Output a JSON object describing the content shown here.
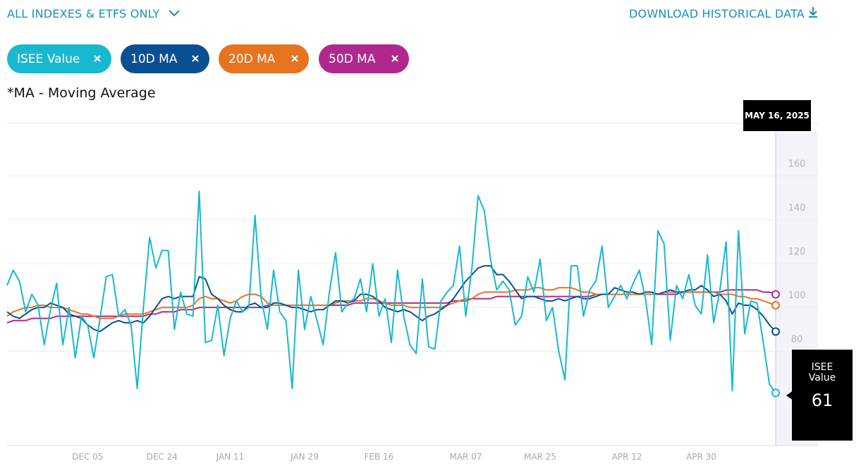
{
  "header": {
    "filter": "ALL INDEXES & ETFS ONLY",
    "download": "DOWNLOAD HISTORICAL DATA",
    "note": "*MA - Moving Average"
  },
  "chart_data": {
    "type": "line",
    "tooltip_date": "MAY 16, 2025",
    "categories": [
      null,
      null,
      null,
      null,
      null,
      null,
      null,
      null,
      null,
      null,
      null,
      null,
      null,
      "DEC 05",
      null,
      null,
      null,
      null,
      null,
      null,
      null,
      null,
      null,
      null,
      null,
      "DEC 24",
      null,
      null,
      null,
      null,
      null,
      null,
      null,
      null,
      null,
      null,
      "JAN 11",
      null,
      null,
      null,
      null,
      null,
      null,
      null,
      null,
      null,
      null,
      null,
      "JAN 29",
      null,
      null,
      null,
      null,
      null,
      null,
      null,
      null,
      null,
      null,
      null,
      "FEB 16",
      null,
      null,
      null,
      null,
      null,
      null,
      null,
      null,
      null,
      null,
      null,
      null,
      null,
      "MAR 07",
      null,
      null,
      null,
      null,
      null,
      null,
      null,
      null,
      null,
      null,
      null,
      "MAR 25",
      null,
      null,
      null,
      null,
      null,
      null,
      null,
      null,
      null,
      null,
      null,
      null,
      null,
      "APR 12",
      null,
      null,
      null,
      null,
      null,
      null,
      null,
      null,
      null,
      null,
      null,
      "APR 30",
      null,
      null,
      null,
      null,
      null,
      null,
      null,
      null,
      null,
      null,
      null,
      null
    ],
    "ylim": [
      37,
      184
    ],
    "yticks": [
      80,
      100,
      120,
      140,
      160
    ],
    "grid": true,
    "series": [
      {
        "name": "ISEE Value",
        "color": "#17b8d0",
        "values": [
          110,
          117,
          112,
          98,
          106,
          101,
          83,
          99,
          111,
          83,
          100,
          77,
          96,
          92,
          77,
          95,
          114,
          115,
          96,
          99,
          92,
          63,
          100,
          132,
          118,
          126,
          126,
          90,
          107,
          97,
          96,
          153,
          84,
          85,
          101,
          78,
          95,
          103,
          98,
          100,
          142,
          104,
          90,
          117,
          98,
          94,
          63,
          117,
          90,
          105,
          94,
          83,
          107,
          125,
          98,
          102,
          104,
          113,
          98,
          120,
          96,
          104,
          84,
          117,
          96,
          83,
          79,
          113,
          82,
          81,
          103,
          107,
          110,
          128,
          96,
          118,
          151,
          144,
          122,
          108,
          112,
          108,
          92,
          96,
          114,
          107,
          122,
          94,
          100,
          80,
          67,
          119,
          119,
          96,
          108,
          112,
          128,
          100,
          105,
          110,
          104,
          111,
          117,
          104,
          83,
          135,
          129,
          85,
          110,
          104,
          115,
          101,
          97,
          124,
          93,
          108,
          130,
          62,
          135,
          88,
          103,
          102,
          84,
          65,
          61
        ]
      },
      {
        "name": "10D MA",
        "color": "#0b4f93",
        "values": [
          98,
          96,
          95,
          97,
          99,
          100,
          100,
          102,
          101,
          100,
          97,
          96,
          95,
          92,
          90,
          89,
          91,
          93,
          94,
          93,
          93,
          94,
          93,
          96,
          100,
          104,
          105,
          104,
          105,
          105,
          105,
          114,
          113,
          106,
          104,
          101,
          99,
          98,
          98,
          101,
          102,
          100,
          100,
          102,
          102,
          101,
          100,
          100,
          99,
          98,
          99,
          99,
          101,
          103,
          103,
          102,
          103,
          106,
          106,
          105,
          103,
          100,
          99,
          98,
          99,
          98,
          96,
          94,
          96,
          97,
          99,
          101,
          104,
          108,
          112,
          115,
          118,
          119,
          119,
          115,
          115,
          112,
          108,
          104,
          105,
          105,
          104,
          103,
          103,
          104,
          103,
          104,
          105,
          104,
          104,
          105,
          106,
          106,
          109,
          108,
          107,
          107,
          106,
          107,
          107,
          106,
          107,
          108,
          107,
          107,
          108,
          108,
          110,
          108,
          105,
          106,
          103,
          97,
          102,
          101,
          101,
          99,
          96,
          92,
          89
        ]
      },
      {
        "name": "20D MA",
        "color": "#e8731f",
        "values": [
          96,
          98,
          99,
          100,
          100,
          101,
          101,
          100,
          100,
          100,
          99,
          98,
          97,
          97,
          96,
          95,
          95,
          95,
          96,
          97,
          97,
          97,
          97,
          98,
          99,
          100,
          100,
          100,
          100,
          100,
          101,
          104,
          105,
          104,
          104,
          103,
          102,
          103,
          105,
          106,
          106,
          105,
          102,
          101,
          101,
          101,
          101,
          101,
          101,
          101,
          101,
          101,
          101,
          102,
          103,
          103,
          103,
          103,
          104,
          104,
          103,
          102,
          101,
          101,
          101,
          100,
          100,
          100,
          100,
          100,
          100,
          101,
          102,
          103,
          104,
          104,
          106,
          107,
          107,
          107,
          107,
          107,
          108,
          108,
          108,
          109,
          109,
          108,
          108,
          109,
          109,
          109,
          108,
          107,
          107,
          106,
          106,
          106,
          106,
          106,
          106,
          106,
          106,
          106,
          106,
          106,
          107,
          107,
          107,
          107,
          107,
          107,
          107,
          107,
          107,
          106,
          106,
          106,
          105,
          105,
          104,
          104,
          103,
          102,
          101
        ]
      },
      {
        "name": "50D MA",
        "color": "#b0288e",
        "values": [
          93,
          94,
          94,
          94,
          95,
          95,
          95,
          95,
          96,
          96,
          96,
          96,
          96,
          96,
          96,
          96,
          96,
          96,
          96,
          96,
          96,
          96,
          96,
          97,
          97,
          98,
          98,
          98,
          99,
          99,
          99,
          100,
          100,
          100,
          100,
          100,
          100,
          100,
          100,
          100,
          100,
          100,
          101,
          101,
          101,
          101,
          101,
          101,
          101,
          101,
          101,
          101,
          101,
          101,
          101,
          101,
          102,
          102,
          102,
          102,
          102,
          102,
          102,
          102,
          102,
          102,
          102,
          102,
          102,
          102,
          102,
          102,
          103,
          103,
          103,
          104,
          104,
          104,
          104,
          105,
          105,
          105,
          105,
          105,
          105,
          105,
          105,
          105,
          105,
          105,
          105,
          105,
          105,
          105,
          105,
          106,
          106,
          106,
          106,
          106,
          106,
          106,
          106,
          106,
          106,
          106,
          106,
          106,
          106,
          107,
          107,
          107,
          107,
          107,
          107,
          107,
          108,
          108,
          108,
          108,
          108,
          108,
          107,
          107,
          106
        ]
      }
    ]
  }
}
